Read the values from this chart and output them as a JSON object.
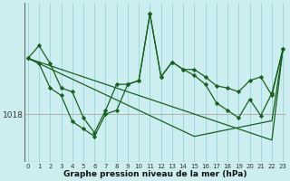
{
  "background_color": "#cceef0",
  "plot_bg_color": "#cceef0",
  "grid_color_v": "#99d4d8",
  "line_color": "#1a6020",
  "xlabel": "Graphe pression niveau de la mer (hPa)",
  "ylabel_tick": "1018",
  "x_labels": [
    "0",
    "1",
    "2",
    "3",
    "4",
    "5",
    "6",
    "7",
    "8",
    "9",
    "10",
    "11",
    "12",
    "13",
    "14",
    "15",
    "16",
    "17",
    "18",
    "19",
    "20",
    "21",
    "22",
    "23"
  ],
  "ylim": [
    1011.5,
    1033.0
  ],
  "xlim": [
    -0.3,
    23.3
  ],
  "y_tick_val": 1018,
  "series_markers": [
    [
      1025.5,
      1027.2,
      1024.8,
      1021.5,
      1021.0,
      1017.5,
      1015.5,
      1018.5,
      1022.0,
      1022.0,
      1022.5,
      1031.5,
      1023.0,
      1025.0,
      1024.0,
      1024.0,
      1023.0,
      1021.8,
      1021.5,
      1021.0,
      1022.5,
      1023.0,
      1020.5,
      1026.8
    ],
    [
      1025.5,
      1024.8,
      1021.5,
      1020.5,
      1017.0,
      1016.0,
      1015.0,
      1018.0,
      1018.5,
      1022.0,
      1022.5,
      1031.5,
      1023.0,
      1025.0,
      1024.0,
      1023.2,
      1022.0,
      1019.5,
      1018.5,
      1017.5,
      1020.0,
      1017.8,
      1020.8,
      1026.8
    ]
  ],
  "series_smooth": [
    [
      1025.5,
      1025.0,
      1024.5,
      1024.0,
      1023.5,
      1023.0,
      1022.5,
      1022.0,
      1021.5,
      1021.0,
      1020.5,
      1020.0,
      1019.5,
      1019.0,
      1018.5,
      1018.0,
      1017.5,
      1017.0,
      1016.5,
      1016.0,
      1015.5,
      1015.0,
      1014.5,
      1026.8
    ],
    [
      1025.5,
      1024.8,
      1024.1,
      1023.4,
      1022.7,
      1022.0,
      1021.3,
      1020.6,
      1019.9,
      1019.2,
      1018.5,
      1017.8,
      1017.1,
      1016.4,
      1015.7,
      1015.0,
      1015.3,
      1015.6,
      1015.9,
      1016.2,
      1016.5,
      1016.8,
      1017.1,
      1026.8
    ]
  ]
}
